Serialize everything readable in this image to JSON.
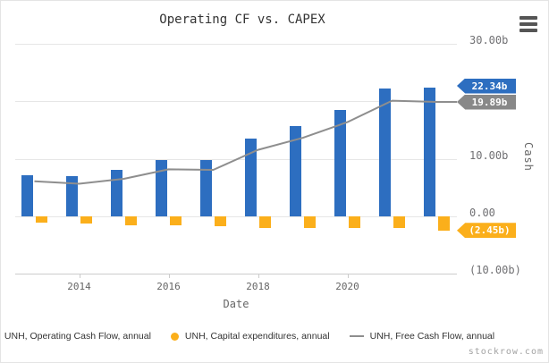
{
  "header": {
    "title": "Operating CF vs. CAPEX"
  },
  "watermark": "stockrow.com",
  "colors": {
    "operating_cf": "#2d6ec0",
    "capex": "#fbaf1b",
    "free_cf_line": "#8e8e8e",
    "free_cf_tag": "#888888",
    "grid": "#e6e6e6",
    "axis": "#cccccc",
    "title_text": "#333333",
    "axis_label": "#707073",
    "tag_text": "#ffffff"
  },
  "y_axis": {
    "title": "Cash",
    "tick_labels": [
      {
        "label": "30.00b",
        "value": 30
      },
      {
        "label": "10.00b",
        "value": 10
      },
      {
        "label": "0.00",
        "value": 0
      },
      {
        "label": "(10.00b)",
        "value": -10
      }
    ],
    "gridline_values": [
      30,
      20,
      10,
      0,
      -10
    ]
  },
  "x_axis": {
    "title": "Date",
    "tick_labels": [
      {
        "label": "2014",
        "year": 2014
      },
      {
        "label": "2016",
        "year": 2016
      },
      {
        "label": "2018",
        "year": 2018
      },
      {
        "label": "2020",
        "year": 2020
      }
    ]
  },
  "value_tags": [
    {
      "label": "22.34b",
      "value": 22.34,
      "key": "operating-cash-flow",
      "color": "#2d6ec0"
    },
    {
      "label": "19.89b",
      "value": 19.89,
      "key": "free-cash-flow",
      "color": "#888888"
    },
    {
      "label": "(2.45b)",
      "value": -2.45,
      "key": "capital-expenditures",
      "color": "#fbaf1b"
    }
  ],
  "legend": {
    "items": [
      {
        "label": "UNH, Operating Cash Flow, annual",
        "key": "operating-cash-flow",
        "marker": "circle",
        "color": "#2d6ec0"
      },
      {
        "label": "UNH, Capital expenditures, annual",
        "key": "capital-expenditures",
        "marker": "circle",
        "color": "#fbaf1b"
      },
      {
        "label": "UNH, Free Cash Flow, annual",
        "key": "free-cash-flow",
        "marker": "line",
        "color": "#8e8e8e"
      }
    ]
  },
  "chart_data": {
    "type": "bar",
    "title": "Operating CF vs. CAPEX",
    "xlabel": "Date",
    "ylabel": "Cash",
    "unit": "billions",
    "x": [
      2012,
      2013,
      2014,
      2015,
      2016,
      2017,
      2018,
      2019,
      2020,
      2021
    ],
    "series": [
      {
        "name": "UNH, Operating Cash Flow, annual",
        "key": "operating-cash-flow",
        "type": "bar",
        "color": "#2d6ec0",
        "values": [
          7.16,
          6.99,
          8.05,
          9.74,
          9.8,
          13.6,
          15.71,
          18.46,
          22.17,
          22.34
        ]
      },
      {
        "name": "UNH, Capital expenditures, annual",
        "key": "capital-expenditures",
        "type": "bar",
        "color": "#fbaf1b",
        "values": [
          -1.07,
          -1.31,
          -1.53,
          -1.56,
          -1.71,
          -2.02,
          -2.06,
          -2.07,
          -2.05,
          -2.45
        ]
      },
      {
        "name": "UNH, Free Cash Flow, annual",
        "key": "free-cash-flow",
        "type": "line",
        "color": "#8e8e8e",
        "values": [
          6.09,
          5.68,
          6.53,
          8.18,
          8.09,
          11.57,
          13.65,
          16.39,
          20.12,
          19.89
        ]
      }
    ],
    "ylim": [
      -10,
      30
    ],
    "x_tick_years": [
      2014,
      2016,
      2018,
      2020
    ],
    "y_tick_labels": [
      "30.00b",
      "10.00b",
      "0.00",
      "(10.00b)"
    ],
    "grid": "horizontal",
    "legend_position": "bottom",
    "last_value_labels": [
      "22.34b",
      "19.89b",
      "(2.45b)"
    ]
  }
}
